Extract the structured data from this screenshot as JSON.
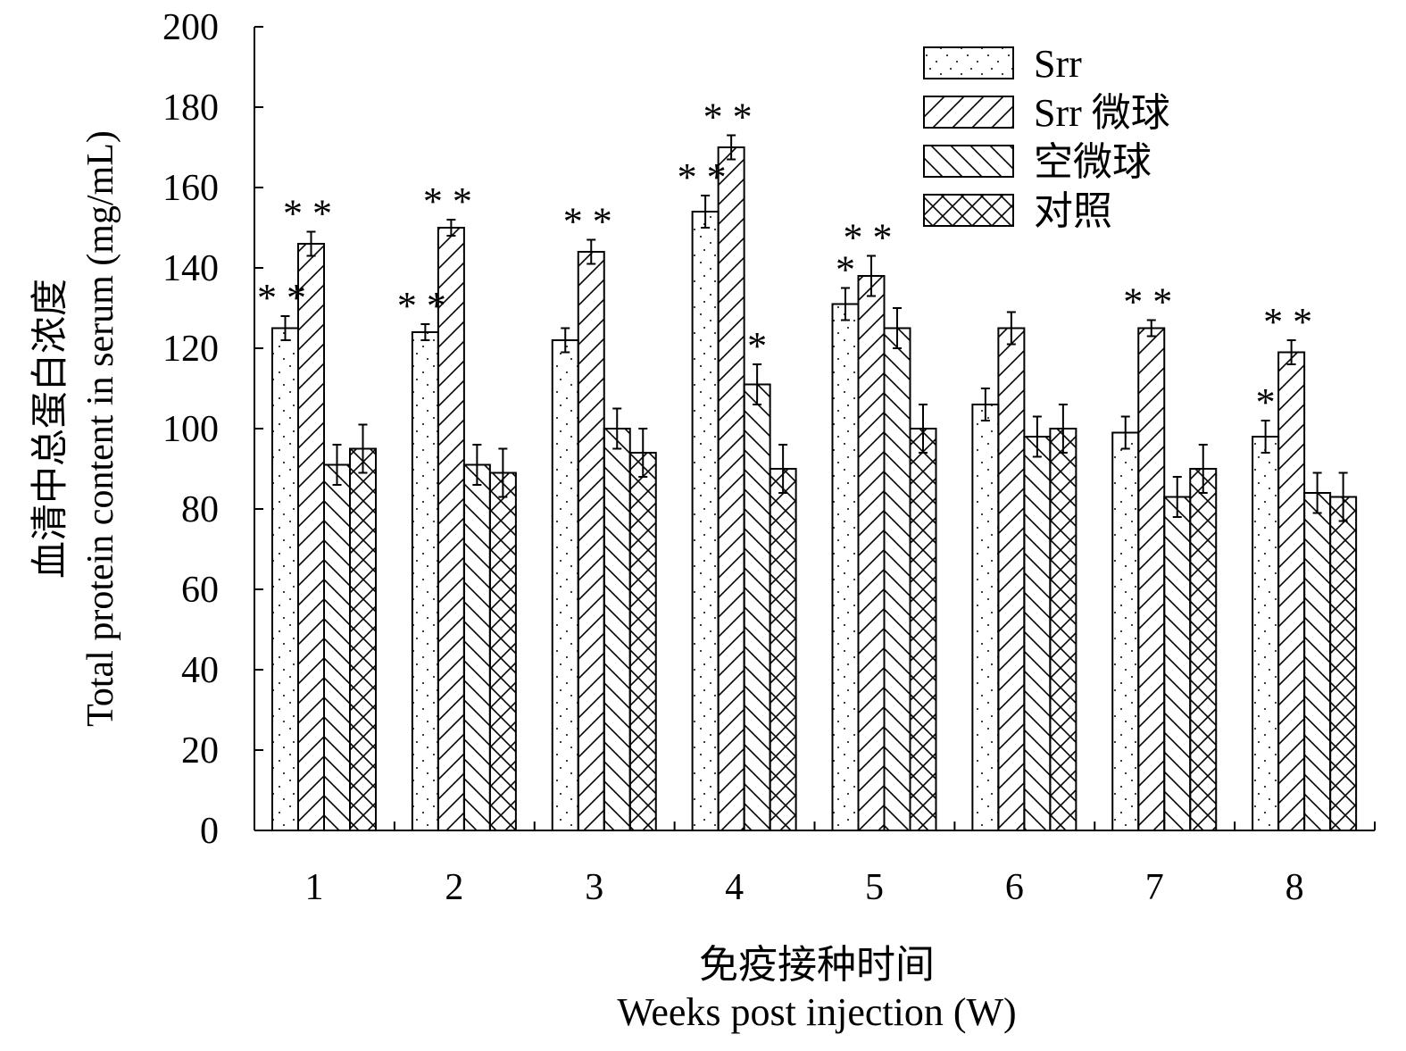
{
  "chart_data": {
    "type": "bar",
    "title": "",
    "ylabel_cn": "血清中总蛋白浓度",
    "ylabel": "Total protein content in serum (mg/mL)",
    "xlabel_cn": "免疫接种时间",
    "xlabel": "Weeks post injection (W)",
    "ylim": [
      0,
      200
    ],
    "yticks": [
      0,
      20,
      40,
      60,
      80,
      100,
      120,
      140,
      160,
      180,
      200
    ],
    "categories": [
      "1",
      "2",
      "3",
      "4",
      "5",
      "6",
      "7",
      "8"
    ],
    "legend_position": "top-right",
    "series": [
      {
        "name": "Srr",
        "pattern": "dots",
        "values": [
          125,
          124,
          122,
          154,
          131,
          106,
          99,
          98
        ],
        "errors": [
          3,
          2,
          3,
          4,
          4,
          4,
          4,
          4
        ],
        "significance": [
          "**",
          "**",
          "",
          "**",
          "*",
          "",
          "",
          "*"
        ]
      },
      {
        "name": "Srr 微球",
        "pattern": "forward-hatch",
        "values": [
          146,
          150,
          144,
          170,
          138,
          125,
          125,
          119
        ],
        "errors": [
          3,
          2,
          3,
          3,
          5,
          4,
          2,
          3
        ],
        "significance": [
          "**",
          "**",
          "**",
          "**",
          "**",
          "",
          "**",
          "**"
        ]
      },
      {
        "name": "空微球",
        "pattern": "back-hatch",
        "values": [
          91,
          91,
          100,
          111,
          125,
          98,
          83,
          84
        ],
        "errors": [
          5,
          5,
          5,
          5,
          5,
          5,
          5,
          5
        ],
        "significance": [
          "",
          "",
          "",
          "*",
          "",
          "",
          "",
          ""
        ]
      },
      {
        "name": "对照",
        "pattern": "cross-hatch",
        "values": [
          95,
          89,
          94,
          90,
          100,
          100,
          90,
          83
        ],
        "errors": [
          6,
          6,
          6,
          6,
          6,
          6,
          6,
          6
        ],
        "significance": [
          "",
          "",
          "",
          "",
          "",
          "",
          "",
          ""
        ]
      }
    ]
  }
}
